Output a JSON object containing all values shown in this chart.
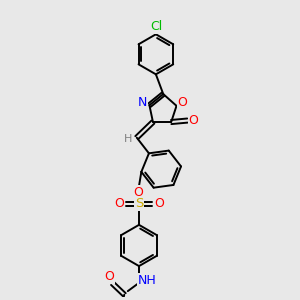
{
  "background_color": "#e8e8e8",
  "bond_color": "#000000",
  "bond_width": 1.4,
  "atom_colors": {
    "C": "#000000",
    "H": "#808080",
    "N": "#0000ff",
    "O": "#ff0000",
    "S": "#ccaa00",
    "Cl": "#00bb00"
  },
  "font_size": 8.5,
  "fig_width": 3.0,
  "fig_height": 3.0,
  "dpi": 100,
  "xlim": [
    0,
    10
  ],
  "ylim": [
    0,
    10
  ]
}
